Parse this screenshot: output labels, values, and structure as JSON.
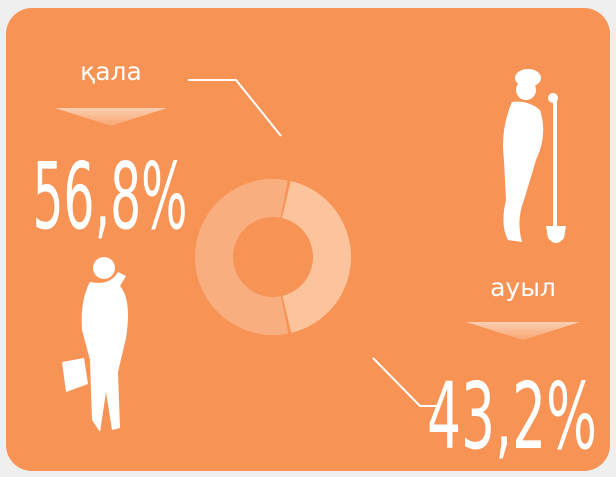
{
  "chart_data": {
    "type": "pie",
    "donut": true,
    "categories": [
      "қала",
      "ауыл"
    ],
    "values": [
      56.8,
      43.2
    ],
    "value_labels": [
      "56,8%",
      "43,2%"
    ],
    "colors": [
      "#f9ae80",
      "#fcc49c"
    ]
  }
}
